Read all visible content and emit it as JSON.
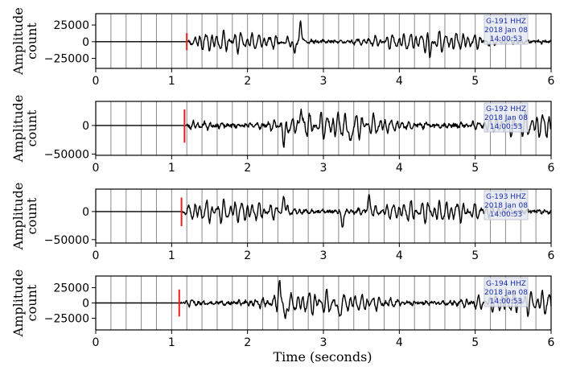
{
  "colors": {
    "trace": "#000000",
    "pick": "#e8201a",
    "grid": "#8a8a8a",
    "info_text": "#1a2fb0",
    "info_bg": "#e6e9f2"
  },
  "xlabel": "Time (seconds)",
  "chart_data": [
    {
      "type": "line",
      "station": "G-191  HHZ",
      "date": "2018 Jan 08",
      "time": "14:00:53",
      "ylabel": [
        "Amplitude",
        "count"
      ],
      "xlim": [
        0,
        6
      ],
      "ylim": [
        -40000,
        42000
      ],
      "yticks": [
        25000,
        0,
        -25000
      ],
      "ytick_labels": [
        "25000",
        "0",
        "−25000"
      ],
      "xticks": [
        0,
        1,
        2,
        3,
        4,
        5,
        6
      ],
      "xtick_labels": [
        "0",
        "1",
        "2",
        "3",
        "4",
        "5",
        "6"
      ],
      "pick_time": 1.2,
      "pick_range": [
        -13000,
        13000
      ],
      "onset": 1.22,
      "amp": 16000,
      "peaks": [
        {
          "t": 2.7,
          "v": 38000
        },
        {
          "t": 2.62,
          "v": -25000
        },
        {
          "t": 4.4,
          "v": -26000
        }
      ],
      "seed": 11
    },
    {
      "type": "line",
      "station": "G-192  HHZ",
      "date": "2018 Jan 08",
      "time": "14:00:53",
      "ylabel": [
        "Amplitude",
        "count"
      ],
      "xlim": [
        0,
        6
      ],
      "ylim": [
        -52000,
        42000
      ],
      "yticks": [
        0,
        -50000
      ],
      "ytick_labels": [
        "0",
        "−50000"
      ],
      "xticks": [
        0,
        1,
        2,
        3,
        4,
        5,
        6
      ],
      "xtick_labels": [
        "0",
        "1",
        "2",
        "3",
        "4",
        "5",
        "6"
      ],
      "pick_time": 1.17,
      "pick_range": [
        -30000,
        28000
      ],
      "onset": 1.2,
      "amp": 24000,
      "peaks": [
        {
          "t": 2.48,
          "v": -45000
        },
        {
          "t": 2.7,
          "v": 36000
        },
        {
          "t": 3.35,
          "v": -42000
        }
      ],
      "seed": 23
    },
    {
      "type": "line",
      "station": "G-193  HHZ",
      "date": "2018 Jan 08",
      "time": "14:00:53",
      "ylabel": [
        "Amplitude",
        "count"
      ],
      "xlim": [
        0,
        6
      ],
      "ylim": [
        -56000,
        40000
      ],
      "yticks": [
        0,
        -50000
      ],
      "ytick_labels": [
        "0",
        "−50000"
      ],
      "xticks": [
        0,
        1,
        2,
        3,
        4,
        5,
        6
      ],
      "xtick_labels": [
        "0",
        "1",
        "2",
        "3",
        "4",
        "5",
        "6"
      ],
      "pick_time": 1.13,
      "pick_range": [
        -26000,
        25000
      ],
      "onset": 1.15,
      "amp": 21000,
      "peaks": [
        {
          "t": 2.48,
          "v": 36000
        },
        {
          "t": 3.25,
          "v": -38000
        },
        {
          "t": 3.6,
          "v": 35000
        }
      ],
      "seed": 37
    },
    {
      "type": "line",
      "station": "G-194  HHZ",
      "date": "2018 Jan 08",
      "time": "14:00:53",
      "ylabel": [
        "Amplitude",
        "count"
      ],
      "xlim": [
        0,
        6
      ],
      "ylim": [
        -44000,
        44000
      ],
      "yticks": [
        25000,
        0,
        -25000
      ],
      "ytick_labels": [
        "25000",
        "0",
        "−25000"
      ],
      "xticks": [
        0,
        1,
        2,
        3,
        4,
        5,
        6
      ],
      "xtick_labels": [
        "0",
        "1",
        "2",
        "3",
        "4",
        "5",
        "6"
      ],
      "pick_time": 1.1,
      "pick_range": [
        -22000,
        22000
      ],
      "onset": 1.12,
      "amp": 20000,
      "peaks": [
        {
          "t": 2.42,
          "v": 40000
        },
        {
          "t": 2.5,
          "v": -36000
        },
        {
          "t": 3.2,
          "v": -33000
        }
      ],
      "seed": 51
    }
  ]
}
